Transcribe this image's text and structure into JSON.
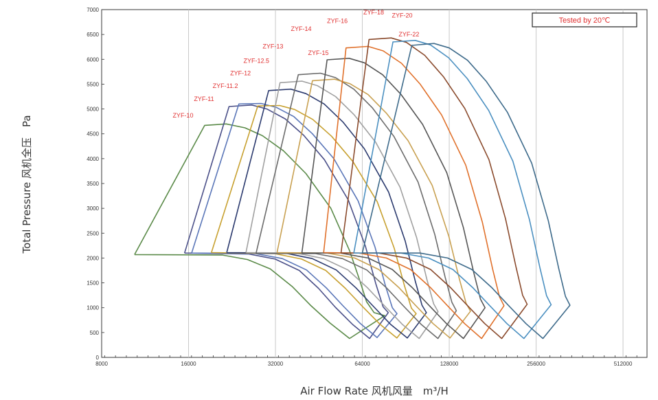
{
  "chart_data": {
    "type": "line",
    "x_scale": "log2",
    "xlim": [
      8000,
      620000
    ],
    "ylim": [
      0,
      7000
    ],
    "xticks": [
      8000,
      16000,
      32000,
      64000,
      128000,
      256000,
      512000
    ],
    "xtick_labels": [
      "8000",
      "16000",
      "32000",
      "64000",
      "128000",
      "256000",
      "512000"
    ],
    "yticks": [
      0,
      500,
      1000,
      1500,
      2000,
      2500,
      3000,
      3500,
      4000,
      4500,
      5000,
      5500,
      6000,
      6500,
      7000
    ],
    "ytick_labels": [
      "0",
      "500",
      "1000",
      "1500",
      "2000",
      "2500",
      "3000",
      "3500",
      "4000",
      "4500",
      "5000",
      "5500",
      "6000",
      "6500",
      "7000"
    ],
    "xlabel": "Air Flow Rate 风机风量　m³/H",
    "ylabel": "Total Pressure 风机全压　Pa",
    "grid": true,
    "note": "Tested  by 20℃",
    "series": [
      {
        "name": "ZYF-10",
        "color": "#5a8a48",
        "label_x": 14100,
        "label_y": 4830,
        "points": [
          [
            10400,
            2070
          ],
          [
            18200,
            4670
          ],
          [
            21600,
            4700
          ],
          [
            25100,
            4620
          ],
          [
            28900,
            4460
          ],
          [
            34100,
            4160
          ],
          [
            40800,
            3700
          ],
          [
            49800,
            3000
          ],
          [
            57800,
            2150
          ],
          [
            62600,
            1560
          ],
          [
            66200,
            1120
          ],
          [
            70300,
            900
          ],
          [
            76500,
            840
          ],
          [
            57800,
            380
          ],
          [
            49500,
            690
          ],
          [
            42300,
            1050
          ],
          [
            36700,
            1420
          ],
          [
            30700,
            1780
          ],
          [
            25600,
            1970
          ],
          [
            21000,
            2060
          ],
          [
            10400,
            2070
          ]
        ]
      },
      {
        "name": "ZYF-11",
        "color": "#4a4f88",
        "label_x": 16700,
        "label_y": 5160,
        "points": [
          [
            15500,
            2100
          ],
          [
            22100,
            5050
          ],
          [
            26500,
            5080
          ],
          [
            29900,
            5000
          ],
          [
            34600,
            4800
          ],
          [
            40100,
            4470
          ],
          [
            47300,
            3980
          ],
          [
            57200,
            3170
          ],
          [
            65600,
            2240
          ],
          [
            71300,
            1480
          ],
          [
            75500,
            1020
          ],
          [
            78700,
            900
          ],
          [
            67800,
            380
          ],
          [
            59300,
            660
          ],
          [
            51600,
            1010
          ],
          [
            45100,
            1390
          ],
          [
            38700,
            1750
          ],
          [
            31900,
            1980
          ],
          [
            25900,
            2080
          ],
          [
            15500,
            2100
          ]
        ]
      },
      {
        "name": "ZYF-11.2",
        "color": "#5a76b8",
        "label_x": 19400,
        "label_y": 5420,
        "points": [
          [
            16400,
            2100
          ],
          [
            23900,
            5100
          ],
          [
            28600,
            5110
          ],
          [
            32300,
            5030
          ],
          [
            37000,
            4850
          ],
          [
            43000,
            4500
          ],
          [
            51000,
            4000
          ],
          [
            61900,
            3150
          ],
          [
            70800,
            2220
          ],
          [
            76900,
            1450
          ],
          [
            81300,
            1000
          ],
          [
            84400,
            880
          ],
          [
            72000,
            400
          ],
          [
            63000,
            680
          ],
          [
            55000,
            1030
          ],
          [
            48000,
            1400
          ],
          [
            41000,
            1760
          ],
          [
            33800,
            1990
          ],
          [
            27200,
            2090
          ],
          [
            16400,
            2100
          ]
        ]
      },
      {
        "name": "ZYF-12",
        "color": "#c7a02f",
        "label_x": 22300,
        "label_y": 5680,
        "points": [
          [
            19200,
            2110
          ],
          [
            27800,
            5060
          ],
          [
            33100,
            5070
          ],
          [
            37300,
            4990
          ],
          [
            43100,
            4790
          ],
          [
            50100,
            4450
          ],
          [
            59400,
            3940
          ],
          [
            72100,
            3130
          ],
          [
            82500,
            2200
          ],
          [
            89600,
            1440
          ],
          [
            94700,
            990
          ],
          [
            98300,
            880
          ],
          [
            84300,
            390
          ],
          [
            73600,
            670
          ],
          [
            64200,
            1020
          ],
          [
            55900,
            1390
          ],
          [
            47800,
            1750
          ],
          [
            39400,
            1980
          ],
          [
            31700,
            2090
          ],
          [
            19200,
            2110
          ]
        ]
      },
      {
        "name": "ZYF-12.5",
        "color": "#2b3a6e",
        "label_x": 24800,
        "label_y": 5930,
        "points": [
          [
            21700,
            2110
          ],
          [
            30300,
            5370
          ],
          [
            36200,
            5400
          ],
          [
            40800,
            5310
          ],
          [
            47200,
            5100
          ],
          [
            54800,
            4740
          ],
          [
            65000,
            4200
          ],
          [
            78900,
            3330
          ],
          [
            90100,
            2340
          ],
          [
            97700,
            1530
          ],
          [
            103000,
            1050
          ],
          [
            106700,
            900
          ],
          [
            91600,
            390
          ],
          [
            80000,
            670
          ],
          [
            69800,
            1030
          ],
          [
            60800,
            1400
          ],
          [
            52000,
            1760
          ],
          [
            42900,
            1990
          ],
          [
            34500,
            2100
          ],
          [
            21700,
            2110
          ]
        ]
      },
      {
        "name": "ZYF-13",
        "color": "#a0a0a0",
        "label_x": 28900,
        "label_y": 6220,
        "points": [
          [
            25300,
            2110
          ],
          [
            33200,
            5530
          ],
          [
            39600,
            5560
          ],
          [
            44700,
            5470
          ],
          [
            51700,
            5250
          ],
          [
            60000,
            4880
          ],
          [
            71200,
            4330
          ],
          [
            86400,
            3430
          ],
          [
            98700,
            2410
          ],
          [
            107100,
            1570
          ],
          [
            113000,
            1080
          ],
          [
            117100,
            920
          ],
          [
            100700,
            380
          ],
          [
            87900,
            670
          ],
          [
            76600,
            1030
          ],
          [
            66700,
            1400
          ],
          [
            57100,
            1760
          ],
          [
            47000,
            1990
          ],
          [
            37800,
            2100
          ],
          [
            25300,
            2110
          ]
        ]
      },
      {
        "name": "ZYF-14",
        "color": "#6b6b6b",
        "label_x": 36200,
        "label_y": 6570,
        "points": [
          [
            27400,
            2090
          ],
          [
            38400,
            5690
          ],
          [
            45800,
            5720
          ],
          [
            51700,
            5630
          ],
          [
            59800,
            5400
          ],
          [
            69400,
            5020
          ],
          [
            82300,
            4450
          ],
          [
            99800,
            3530
          ],
          [
            114000,
            2480
          ],
          [
            123800,
            1620
          ],
          [
            130700,
            1110
          ],
          [
            135500,
            940
          ],
          [
            117000,
            380
          ],
          [
            102100,
            670
          ],
          [
            89000,
            1030
          ],
          [
            77600,
            1400
          ],
          [
            66300,
            1760
          ],
          [
            54600,
            1990
          ],
          [
            43900,
            2090
          ],
          [
            27400,
            2090
          ]
        ]
      },
      {
        "name": "ZYF-15",
        "color": "#c8a050",
        "label_x": 41500,
        "label_y": 6090,
        "points": [
          [
            32400,
            2110
          ],
          [
            43000,
            5570
          ],
          [
            51300,
            5600
          ],
          [
            57900,
            5510
          ],
          [
            67000,
            5290
          ],
          [
            77700,
            4910
          ],
          [
            92200,
            4360
          ],
          [
            111800,
            3460
          ],
          [
            127700,
            2430
          ],
          [
            138600,
            1590
          ],
          [
            146400,
            1090
          ],
          [
            151700,
            930
          ],
          [
            128800,
            390
          ],
          [
            112500,
            680
          ],
          [
            98100,
            1040
          ],
          [
            85500,
            1410
          ],
          [
            73000,
            1770
          ],
          [
            60200,
            2000
          ],
          [
            48400,
            2100
          ],
          [
            32400,
            2110
          ]
        ]
      },
      {
        "name": "ZYF-16",
        "color": "#555555",
        "label_x": 48300,
        "label_y": 6730,
        "points": [
          [
            39500,
            2100
          ],
          [
            48300,
            5990
          ],
          [
            57600,
            6020
          ],
          [
            65000,
            5930
          ],
          [
            75200,
            5690
          ],
          [
            87200,
            5290
          ],
          [
            103500,
            4690
          ],
          [
            125500,
            3720
          ],
          [
            143300,
            2610
          ],
          [
            155600,
            1710
          ],
          [
            164300,
            1170
          ],
          [
            170300,
            1000
          ],
          [
            143300,
            380
          ],
          [
            125200,
            680
          ],
          [
            109200,
            1040
          ],
          [
            95100,
            1410
          ],
          [
            81300,
            1770
          ],
          [
            67000,
            2000
          ],
          [
            53800,
            2100
          ],
          [
            39500,
            2100
          ]
        ]
      },
      {
        "name": "ZYF-18",
        "color": "#e0702a",
        "label_x": 64500,
        "label_y": 6900,
        "points": [
          [
            47000,
            2110
          ],
          [
            56200,
            6230
          ],
          [
            67000,
            6260
          ],
          [
            75600,
            6170
          ],
          [
            87500,
            5920
          ],
          [
            101500,
            5500
          ],
          [
            120400,
            4880
          ],
          [
            146000,
            3870
          ],
          [
            166700,
            2720
          ],
          [
            180900,
            1780
          ],
          [
            191100,
            1220
          ],
          [
            198100,
            1040
          ],
          [
            165700,
            380
          ],
          [
            144700,
            680
          ],
          [
            126200,
            1040
          ],
          [
            110000,
            1410
          ],
          [
            94000,
            1770
          ],
          [
            77500,
            2000
          ],
          [
            62200,
            2100
          ],
          [
            47000,
            2110
          ]
        ]
      },
      {
        "name": "ZYF-20",
        "color": "#8a4a2c",
        "label_x": 81000,
        "label_y": 6840,
        "points": [
          [
            54000,
            2100
          ],
          [
            67500,
            6400
          ],
          [
            80600,
            6430
          ],
          [
            91000,
            6340
          ],
          [
            105300,
            6080
          ],
          [
            122200,
            5650
          ],
          [
            144900,
            5010
          ],
          [
            175700,
            3980
          ],
          [
            200600,
            2790
          ],
          [
            217800,
            1830
          ],
          [
            229900,
            1250
          ],
          [
            238300,
            1070
          ],
          [
            194600,
            380
          ],
          [
            169900,
            680
          ],
          [
            148200,
            1040
          ],
          [
            129100,
            1410
          ],
          [
            110400,
            1770
          ],
          [
            91000,
            2000
          ],
          [
            73000,
            2100
          ],
          [
            54000,
            2100
          ]
        ]
      },
      {
        "name": "ZYF-22",
        "color": "#4a8fc0",
        "label_x": 85500,
        "label_y": 6460,
        "points": [
          [
            59800,
            2100
          ],
          [
            81700,
            6350
          ],
          [
            97600,
            6380
          ],
          [
            110200,
            6290
          ],
          [
            127500,
            6030
          ],
          [
            147900,
            5610
          ],
          [
            175400,
            4970
          ],
          [
            212700,
            3950
          ],
          [
            242800,
            2770
          ],
          [
            263700,
            1810
          ],
          [
            278300,
            1240
          ],
          [
            288500,
            1060
          ],
          [
            232300,
            380
          ],
          [
            202800,
            680
          ],
          [
            176900,
            1040
          ],
          [
            154100,
            1410
          ],
          [
            131800,
            1770
          ],
          [
            108600,
            2000
          ],
          [
            87200,
            2100
          ],
          [
            59800,
            2100
          ]
        ]
      },
      {
        "name": "",
        "color": "#3d6a8a",
        "label_x": 0,
        "label_y": 0,
        "points": [
          [
            64000,
            2100
          ],
          [
            95000,
            6280
          ],
          [
            113400,
            6320
          ],
          [
            128000,
            6230
          ],
          [
            148100,
            5980
          ],
          [
            171800,
            5560
          ],
          [
            203800,
            4930
          ],
          [
            247100,
            3910
          ],
          [
            282100,
            2750
          ],
          [
            306300,
            1800
          ],
          [
            323400,
            1230
          ],
          [
            335200,
            1050
          ],
          [
            270300,
            380
          ],
          [
            236000,
            680
          ],
          [
            205800,
            1040
          ],
          [
            179300,
            1410
          ],
          [
            153300,
            1770
          ],
          [
            126400,
            2000
          ],
          [
            101400,
            2100
          ],
          [
            64000,
            2100
          ]
        ]
      }
    ]
  }
}
